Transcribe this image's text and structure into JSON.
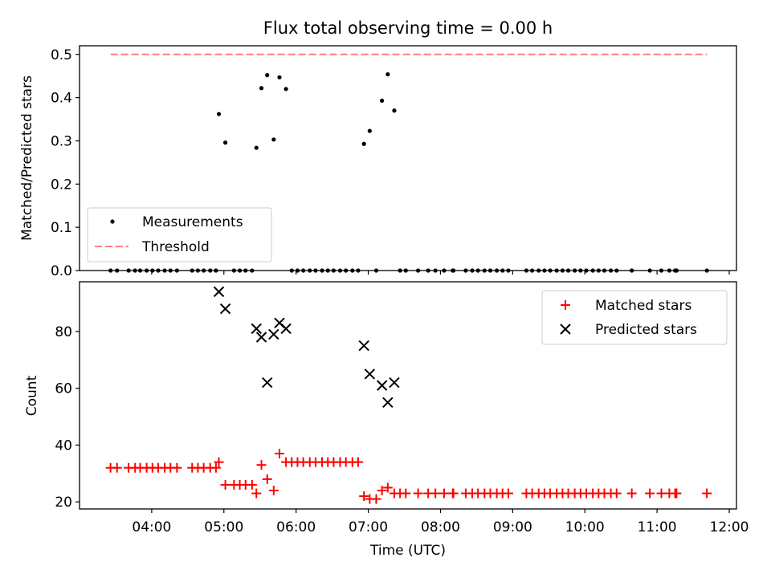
{
  "figure": {
    "title": "Flux total observing time = 0.00 h",
    "xlabel": "Time (UTC)",
    "x_ticks": [
      "04:00",
      "05:00",
      "06:00",
      "07:00",
      "08:00",
      "09:00",
      "10:00",
      "11:00",
      "12:00"
    ]
  },
  "chart_data": [
    {
      "type": "scatter",
      "panel": "top",
      "ylabel": "Matched/Predicted stars",
      "xlim": [
        3.0,
        12.1
      ],
      "ylim": [
        0,
        0.52
      ],
      "y_ticks": [
        "0.0",
        "0.1",
        "0.2",
        "0.3",
        "0.4",
        "0.5"
      ],
      "legend_position": "lower-left",
      "series": [
        {
          "name": "Measurements",
          "marker": "dot",
          "color": "#000000",
          "points": [
            [
              3.43,
              0
            ],
            [
              3.52,
              0
            ],
            [
              3.68,
              0
            ],
            [
              3.77,
              0
            ],
            [
              3.84,
              0
            ],
            [
              3.93,
              0
            ],
            [
              4.01,
              0
            ],
            [
              4.09,
              0
            ],
            [
              4.18,
              0
            ],
            [
              4.26,
              0
            ],
            [
              4.35,
              0
            ],
            [
              4.56,
              0
            ],
            [
              4.64,
              0
            ],
            [
              4.72,
              0
            ],
            [
              4.81,
              0
            ],
            [
              4.89,
              0
            ],
            [
              4.93,
              0.362
            ],
            [
              5.02,
              0.296
            ],
            [
              5.14,
              0
            ],
            [
              5.22,
              0
            ],
            [
              5.3,
              0
            ],
            [
              5.39,
              0
            ],
            [
              5.45,
              0.284
            ],
            [
              5.52,
              0.422
            ],
            [
              5.6,
              0.452
            ],
            [
              5.69,
              0.303
            ],
            [
              5.77,
              0.447
            ],
            [
              5.86,
              0.42
            ],
            [
              5.94,
              0
            ],
            [
              6.02,
              0
            ],
            [
              6.1,
              0
            ],
            [
              6.19,
              0
            ],
            [
              6.27,
              0
            ],
            [
              6.36,
              0
            ],
            [
              6.44,
              0
            ],
            [
              6.52,
              0
            ],
            [
              6.61,
              0
            ],
            [
              6.69,
              0
            ],
            [
              6.78,
              0
            ],
            [
              6.86,
              0
            ],
            [
              6.94,
              0.293
            ],
            [
              7.02,
              0.323
            ],
            [
              7.11,
              0
            ],
            [
              7.19,
              0.393
            ],
            [
              7.27,
              0.454
            ],
            [
              7.36,
              0.37
            ],
            [
              7.44,
              0
            ],
            [
              7.52,
              0
            ],
            [
              7.69,
              0
            ],
            [
              7.83,
              0
            ],
            [
              7.93,
              0
            ],
            [
              8.05,
              0
            ],
            [
              8.17,
              0
            ],
            [
              8.18,
              0
            ],
            [
              8.35,
              0
            ],
            [
              8.44,
              0
            ],
            [
              8.52,
              0
            ],
            [
              8.61,
              0
            ],
            [
              8.69,
              0
            ],
            [
              8.78,
              0
            ],
            [
              8.86,
              0
            ],
            [
              8.94,
              0
            ],
            [
              9.19,
              0
            ],
            [
              9.27,
              0
            ],
            [
              9.36,
              0
            ],
            [
              9.44,
              0
            ],
            [
              9.52,
              0
            ],
            [
              9.61,
              0
            ],
            [
              9.69,
              0
            ],
            [
              9.77,
              0
            ],
            [
              9.86,
              0
            ],
            [
              9.94,
              0
            ],
            [
              10.02,
              0
            ],
            [
              10.11,
              0
            ],
            [
              10.19,
              0
            ],
            [
              10.27,
              0
            ],
            [
              10.36,
              0
            ],
            [
              10.44,
              0
            ],
            [
              10.65,
              0
            ],
            [
              10.9,
              0
            ],
            [
              11.06,
              0
            ],
            [
              11.17,
              0
            ],
            [
              11.25,
              0
            ],
            [
              11.27,
              0
            ],
            [
              11.69,
              0
            ]
          ]
        },
        {
          "name": "Threshold",
          "marker": "dashed-line",
          "color": "#ff7f7f",
          "points": [
            [
              3.43,
              0.5
            ],
            [
              11.69,
              0.5
            ]
          ]
        }
      ]
    },
    {
      "type": "scatter",
      "panel": "bottom",
      "ylabel": "Count",
      "xlim": [
        3.0,
        12.1
      ],
      "ylim": [
        17.5,
        97.5
      ],
      "y_ticks": [
        "20",
        "40",
        "60",
        "80"
      ],
      "y_tick_values": [
        20,
        40,
        60,
        80
      ],
      "legend_position": "upper-right",
      "series": [
        {
          "name": "Matched stars",
          "marker": "plus",
          "color": "#ff0000",
          "points": [
            [
              3.43,
              32
            ],
            [
              3.52,
              32
            ],
            [
              3.68,
              32
            ],
            [
              3.77,
              32
            ],
            [
              3.84,
              32
            ],
            [
              3.93,
              32
            ],
            [
              4.01,
              32
            ],
            [
              4.09,
              32
            ],
            [
              4.18,
              32
            ],
            [
              4.26,
              32
            ],
            [
              4.35,
              32
            ],
            [
              4.56,
              32
            ],
            [
              4.64,
              32
            ],
            [
              4.72,
              32
            ],
            [
              4.81,
              32
            ],
            [
              4.89,
              32
            ],
            [
              4.93,
              34
            ],
            [
              5.02,
              26
            ],
            [
              5.14,
              26
            ],
            [
              5.22,
              26
            ],
            [
              5.3,
              26
            ],
            [
              5.39,
              26
            ],
            [
              5.45,
              23
            ],
            [
              5.52,
              33
            ],
            [
              5.6,
              28
            ],
            [
              5.69,
              24
            ],
            [
              5.77,
              37
            ],
            [
              5.86,
              34
            ],
            [
              5.94,
              34
            ],
            [
              6.02,
              34
            ],
            [
              6.1,
              34
            ],
            [
              6.19,
              34
            ],
            [
              6.27,
              34
            ],
            [
              6.36,
              34
            ],
            [
              6.44,
              34
            ],
            [
              6.52,
              34
            ],
            [
              6.61,
              34
            ],
            [
              6.69,
              34
            ],
            [
              6.78,
              34
            ],
            [
              6.86,
              34
            ],
            [
              6.94,
              22
            ],
            [
              7.02,
              21
            ],
            [
              7.11,
              21
            ],
            [
              7.19,
              24
            ],
            [
              7.27,
              25
            ],
            [
              7.36,
              23
            ],
            [
              7.44,
              23
            ],
            [
              7.52,
              23
            ],
            [
              7.69,
              23
            ],
            [
              7.83,
              23
            ],
            [
              7.93,
              23
            ],
            [
              8.05,
              23
            ],
            [
              8.17,
              23
            ],
            [
              8.18,
              23
            ],
            [
              8.35,
              23
            ],
            [
              8.44,
              23
            ],
            [
              8.52,
              23
            ],
            [
              8.61,
              23
            ],
            [
              8.69,
              23
            ],
            [
              8.78,
              23
            ],
            [
              8.86,
              23
            ],
            [
              8.94,
              23
            ],
            [
              9.19,
              23
            ],
            [
              9.27,
              23
            ],
            [
              9.36,
              23
            ],
            [
              9.44,
              23
            ],
            [
              9.52,
              23
            ],
            [
              9.61,
              23
            ],
            [
              9.69,
              23
            ],
            [
              9.77,
              23
            ],
            [
              9.86,
              23
            ],
            [
              9.94,
              23
            ],
            [
              10.02,
              23
            ],
            [
              10.11,
              23
            ],
            [
              10.19,
              23
            ],
            [
              10.27,
              23
            ],
            [
              10.36,
              23
            ],
            [
              10.44,
              23
            ],
            [
              10.65,
              23
            ],
            [
              10.9,
              23
            ],
            [
              11.06,
              23
            ],
            [
              11.17,
              23
            ],
            [
              11.25,
              23
            ],
            [
              11.27,
              23
            ],
            [
              11.69,
              23
            ]
          ]
        },
        {
          "name": "Predicted stars",
          "marker": "x",
          "color": "#000000",
          "points": [
            [
              4.93,
              94
            ],
            [
              5.02,
              88
            ],
            [
              5.45,
              81
            ],
            [
              5.52,
              78
            ],
            [
              5.6,
              62
            ],
            [
              5.69,
              79
            ],
            [
              5.77,
              83
            ],
            [
              5.86,
              81
            ],
            [
              6.94,
              75
            ],
            [
              7.02,
              65
            ],
            [
              7.19,
              61
            ],
            [
              7.27,
              55
            ],
            [
              7.36,
              62
            ]
          ]
        }
      ]
    }
  ]
}
